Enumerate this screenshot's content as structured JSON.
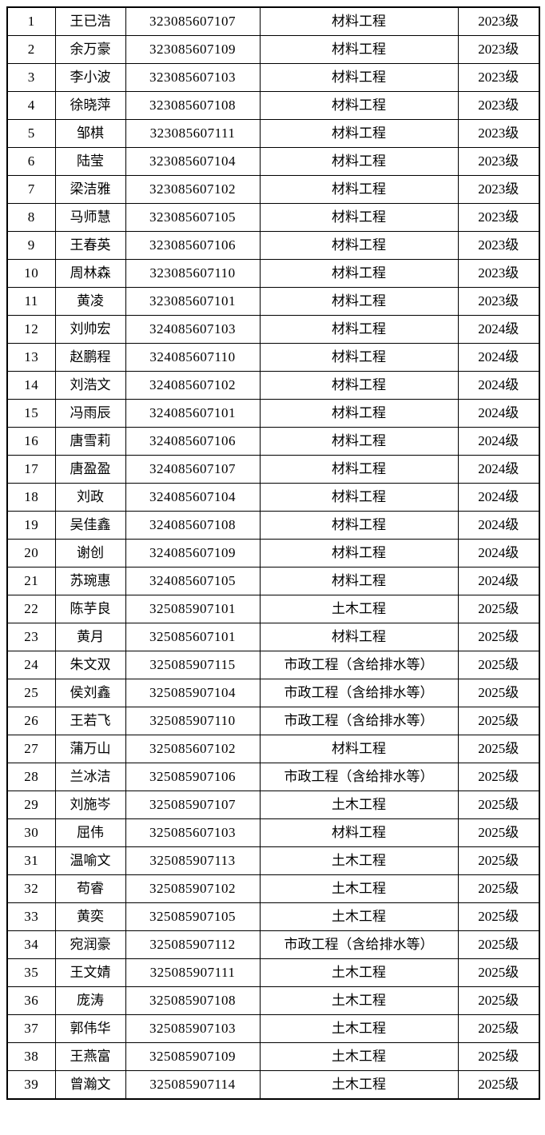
{
  "table": {
    "row_count": 39,
    "text_color": "#000000",
    "border_color": "#000000",
    "background_color": "#ffffff",
    "majors_seen": [
      "材料工程",
      "土木工程",
      "市政工程（含给排水等）"
    ],
    "grades_seen": [
      "2023级",
      "2024级",
      "2025级"
    ],
    "rows": [
      [
        "1",
        "王已浩",
        "323085607107",
        "材料工程",
        "2023级"
      ],
      [
        "2",
        "余万豪",
        "323085607109",
        "材料工程",
        "2023级"
      ],
      [
        "3",
        "李小波",
        "323085607103",
        "材料工程",
        "2023级"
      ],
      [
        "4",
        "徐晓萍",
        "323085607108",
        "材料工程",
        "2023级"
      ],
      [
        "5",
        "邹棋",
        "323085607111",
        "材料工程",
        "2023级"
      ],
      [
        "6",
        "陆莹",
        "323085607104",
        "材料工程",
        "2023级"
      ],
      [
        "7",
        "梁洁雅",
        "323085607102",
        "材料工程",
        "2023级"
      ],
      [
        "8",
        "马师慧",
        "323085607105",
        "材料工程",
        "2023级"
      ],
      [
        "9",
        "王春英",
        "323085607106",
        "材料工程",
        "2023级"
      ],
      [
        "10",
        "周林森",
        "323085607110",
        "材料工程",
        "2023级"
      ],
      [
        "11",
        "黄凌",
        "323085607101",
        "材料工程",
        "2023级"
      ],
      [
        "12",
        "刘帅宏",
        "324085607103",
        "材料工程",
        "2024级"
      ],
      [
        "13",
        "赵鹏程",
        "324085607110",
        "材料工程",
        "2024级"
      ],
      [
        "14",
        "刘浩文",
        "324085607102",
        "材料工程",
        "2024级"
      ],
      [
        "15",
        "冯雨辰",
        "324085607101",
        "材料工程",
        "2024级"
      ],
      [
        "16",
        "唐雪莉",
        "324085607106",
        "材料工程",
        "2024级"
      ],
      [
        "17",
        "唐盈盈",
        "324085607107",
        "材料工程",
        "2024级"
      ],
      [
        "18",
        "刘政",
        "324085607104",
        "材料工程",
        "2024级"
      ],
      [
        "19",
        "吴佳鑫",
        "324085607108",
        "材料工程",
        "2024级"
      ],
      [
        "20",
        "谢创",
        "324085607109",
        "材料工程",
        "2024级"
      ],
      [
        "21",
        "苏琬惠",
        "324085607105",
        "材料工程",
        "2024级"
      ],
      [
        "22",
        "陈芋良",
        "325085907101",
        "土木工程",
        "2025级"
      ],
      [
        "23",
        "黄月",
        "325085607101",
        "材料工程",
        "2025级"
      ],
      [
        "24",
        "朱文双",
        "325085907115",
        "市政工程（含给排水等）",
        "2025级"
      ],
      [
        "25",
        "侯刘鑫",
        "325085907104",
        "市政工程（含给排水等）",
        "2025级"
      ],
      [
        "26",
        "王若飞",
        "325085907110",
        "市政工程（含给排水等）",
        "2025级"
      ],
      [
        "27",
        "蒲万山",
        "325085607102",
        "材料工程",
        "2025级"
      ],
      [
        "28",
        "兰冰洁",
        "325085907106",
        "市政工程（含给排水等）",
        "2025级"
      ],
      [
        "29",
        "刘施岑",
        "325085907107",
        "土木工程",
        "2025级"
      ],
      [
        "30",
        "屈伟",
        "325085607103",
        "材料工程",
        "2025级"
      ],
      [
        "31",
        "温喻文",
        "325085907113",
        "土木工程",
        "2025级"
      ],
      [
        "32",
        "苟睿",
        "325085907102",
        "土木工程",
        "2025级"
      ],
      [
        "33",
        "黄奕",
        "325085907105",
        "土木工程",
        "2025级"
      ],
      [
        "34",
        "宛润豪",
        "325085907112",
        "市政工程（含给排水等）",
        "2025级"
      ],
      [
        "35",
        "王文婧",
        "325085907111",
        "土木工程",
        "2025级"
      ],
      [
        "36",
        "庞涛",
        "325085907108",
        "土木工程",
        "2025级"
      ],
      [
        "37",
        "郭伟华",
        "325085907103",
        "土木工程",
        "2025级"
      ],
      [
        "38",
        "王燕富",
        "325085907109",
        "土木工程",
        "2025级"
      ],
      [
        "39",
        "曾瀚文",
        "325085907114",
        "土木工程",
        "2025级"
      ]
    ]
  }
}
